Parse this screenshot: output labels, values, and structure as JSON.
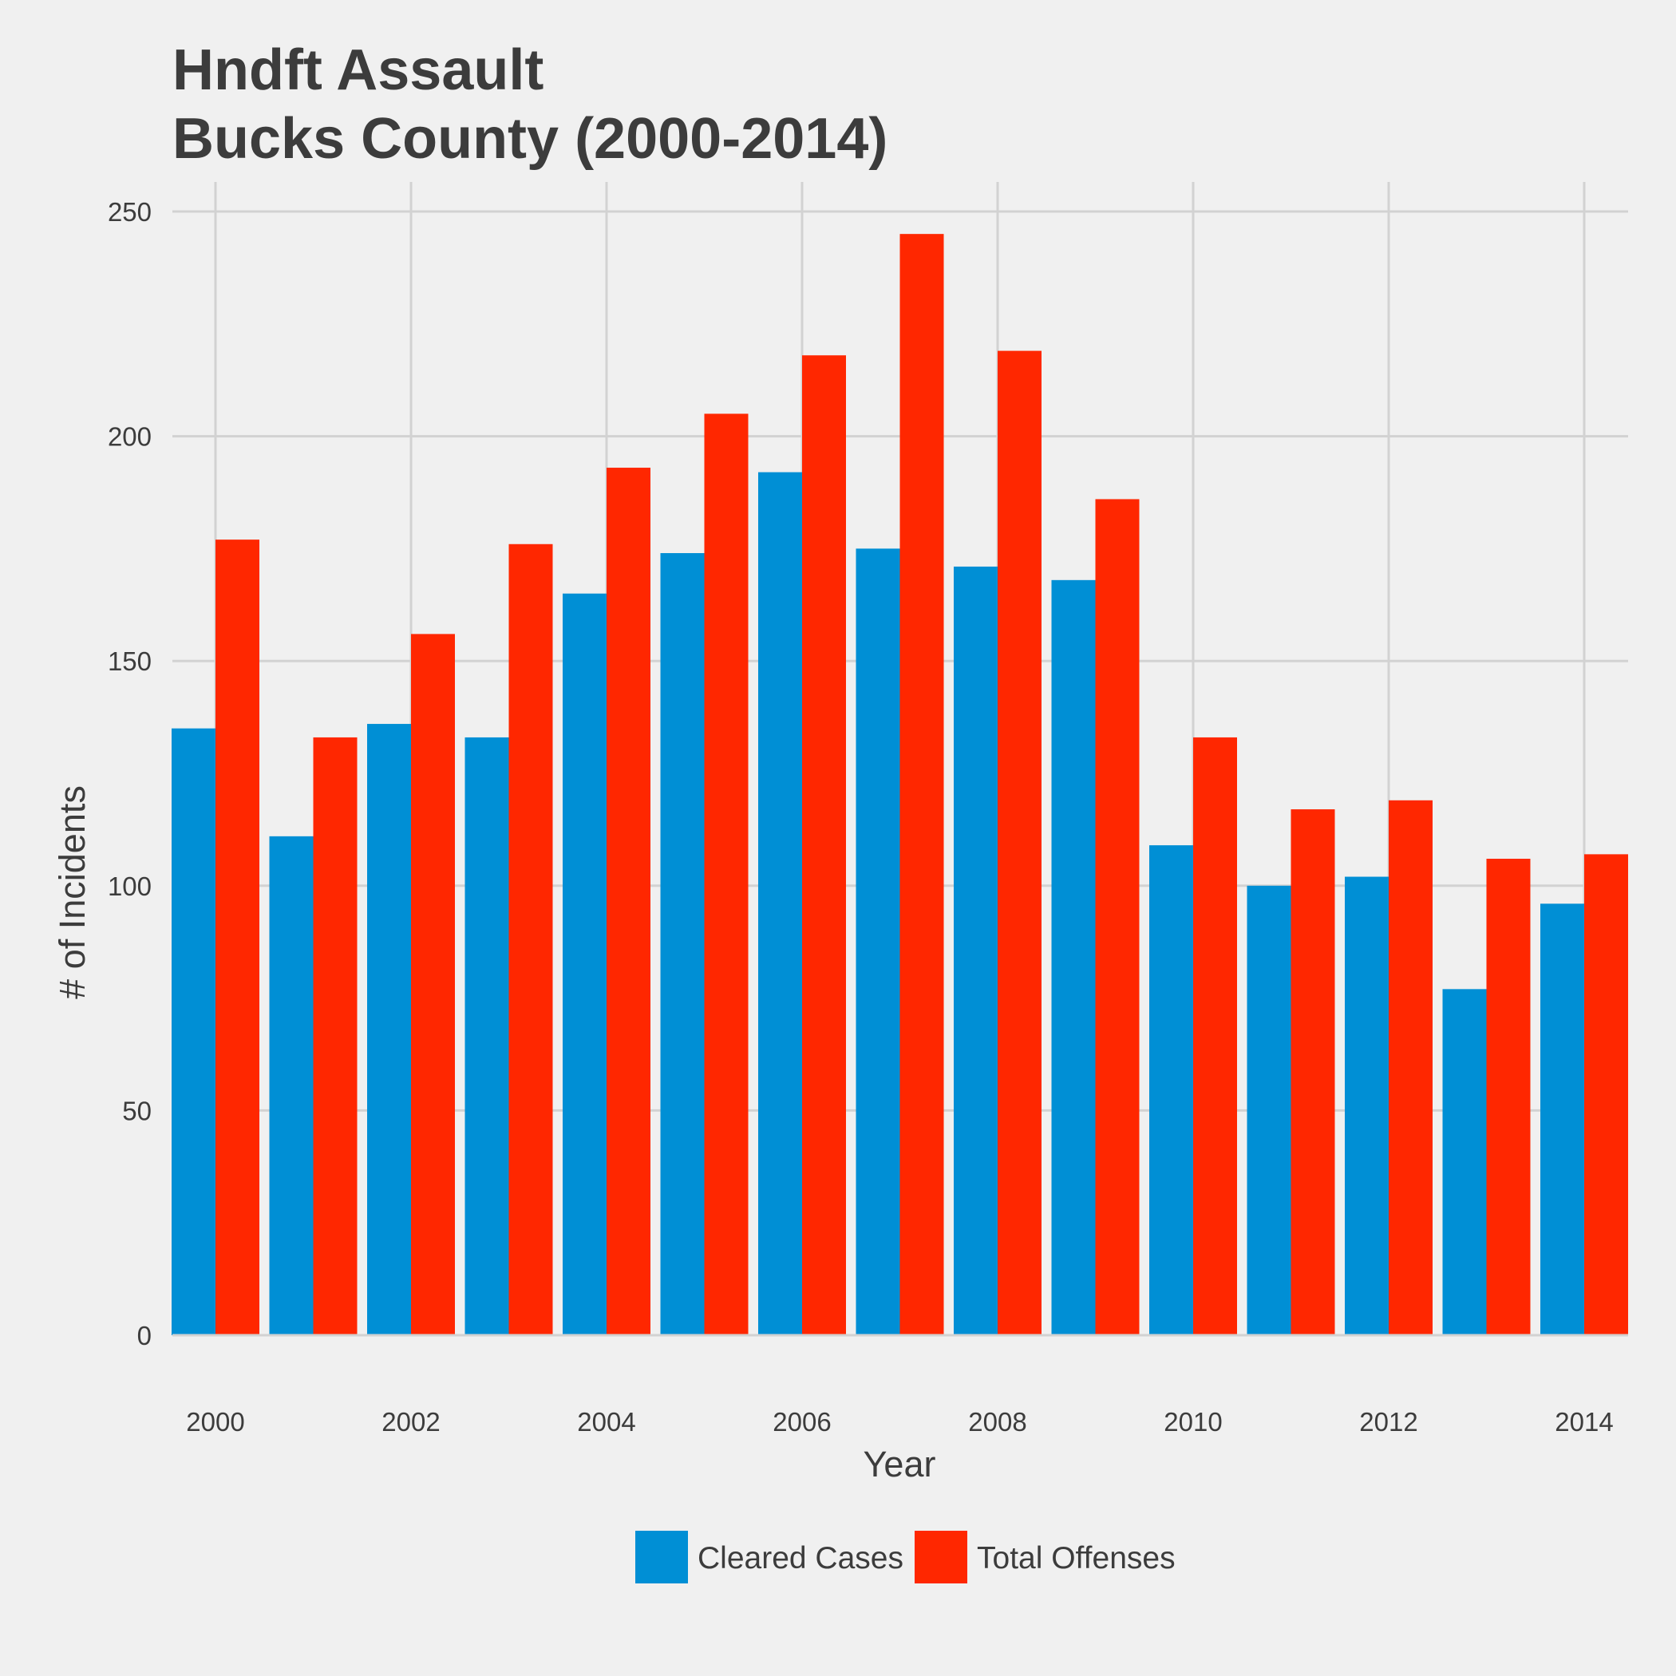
{
  "chart_data": {
    "type": "bar",
    "title_lines": [
      "Hndft Assault",
      "Bucks County (2000-2014)"
    ],
    "xlabel": "Year",
    "ylabel": "# of Incidents",
    "x": [
      2000,
      2001,
      2002,
      2003,
      2004,
      2005,
      2006,
      2007,
      2008,
      2009,
      2010,
      2011,
      2012,
      2013,
      2014
    ],
    "x_ticks": [
      "2000",
      "2002",
      "2004",
      "2006",
      "2008",
      "2010",
      "2012",
      "2014"
    ],
    "y_ticks": [
      "0",
      "50",
      "100",
      "150",
      "200",
      "250"
    ],
    "ylim": [
      0,
      250
    ],
    "grid": true,
    "legend_position": "bottom",
    "series": [
      {
        "name": "Cleared Cases",
        "color": "#008fd5",
        "values": [
          135,
          111,
          136,
          133,
          165,
          174,
          192,
          175,
          171,
          168,
          109,
          100,
          102,
          77,
          96
        ]
      },
      {
        "name": "Total Offenses",
        "color": "#ff2700",
        "values": [
          177,
          133,
          156,
          176,
          193,
          205,
          218,
          245,
          219,
          186,
          133,
          117,
          119,
          106,
          107
        ]
      }
    ]
  }
}
